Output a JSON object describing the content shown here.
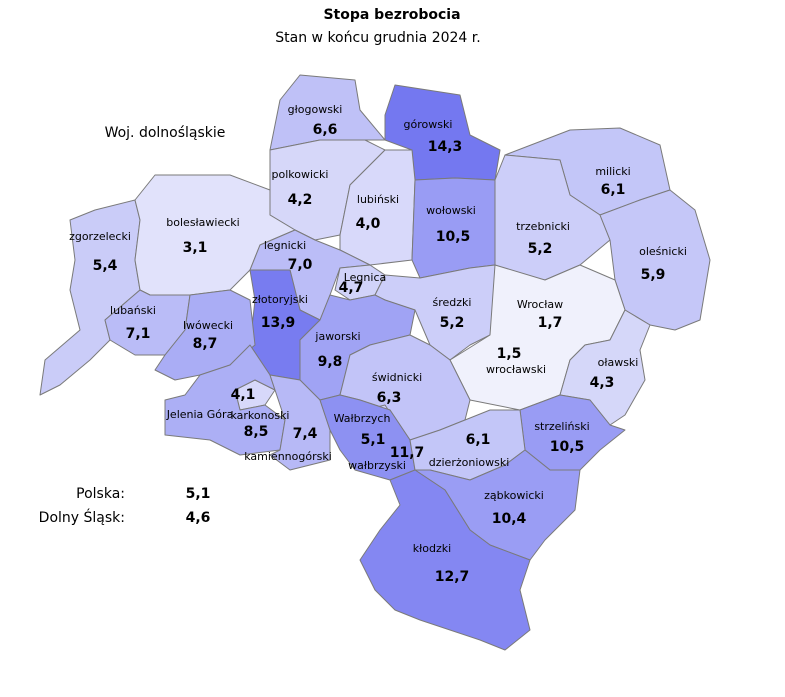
{
  "title": "Stopa bezrobocia",
  "subtitle": "Stan w końcu grudnia 2024 r.",
  "region_label": "Woj. dolnośląskie",
  "color_scale": [
    "#f0f1fc",
    "#7478f0"
  ],
  "regions": [
    {
      "name": "głogowski",
      "value": 6.6,
      "value_label": "6,6"
    },
    {
      "name": "górowski",
      "value": 14.3,
      "value_label": "14,3"
    },
    {
      "name": "polkowicki",
      "value": 4.2,
      "value_label": "4,2"
    },
    {
      "name": "lubiński",
      "value": 4.0,
      "value_label": "4,0"
    },
    {
      "name": "wołowski",
      "value": 10.5,
      "value_label": "10,5"
    },
    {
      "name": "milicki",
      "value": 6.1,
      "value_label": "6,1"
    },
    {
      "name": "trzebnicki",
      "value": 5.2,
      "value_label": "5,2"
    },
    {
      "name": "oleśnicki",
      "value": 5.9,
      "value_label": "5,9"
    },
    {
      "name": "zgorzelecki",
      "value": 5.4,
      "value_label": "5,4"
    },
    {
      "name": "bolesławiecki",
      "value": 3.1,
      "value_label": "3,1"
    },
    {
      "name": "legnicki",
      "value": 7.0,
      "value_label": "7,0"
    },
    {
      "name": "Legnica",
      "value": 4.7,
      "value_label": "4,7"
    },
    {
      "name": "złotoryjski",
      "value": 13.9,
      "value_label": "13,9"
    },
    {
      "name": "średzki",
      "value": 5.2,
      "value_label": "5,2"
    },
    {
      "name": "Wrocław",
      "value": 1.7,
      "value_label": "1,7"
    },
    {
      "name": "lubański",
      "value": 7.1,
      "value_label": "7,1"
    },
    {
      "name": "lwówecki",
      "value": 8.7,
      "value_label": "8,7"
    },
    {
      "name": "jaworski",
      "value": 9.8,
      "value_label": "9,8"
    },
    {
      "name": "wrocławski",
      "value": 1.5,
      "value_label": "1,5"
    },
    {
      "name": "oławski",
      "value": 4.3,
      "value_label": "4,3"
    },
    {
      "name": "świdnicki",
      "value": 6.3,
      "value_label": "6,3"
    },
    {
      "name": "Jelenia Góra",
      "value": 4.1,
      "value_label": "4,1"
    },
    {
      "name": "karkonoski",
      "value": 8.5,
      "value_label": "8,5"
    },
    {
      "name": "Wałbrzych",
      "value": 5.1,
      "value_label": "5,1"
    },
    {
      "name": "kamiennogórski",
      "value": 7.4,
      "value_label": "7,4"
    },
    {
      "name": "wałbrzyski",
      "value": 11.7,
      "value_label": "11,7"
    },
    {
      "name": "strzeliński",
      "value": 10.5,
      "value_label": "10,5"
    },
    {
      "name": "dzierżoniowski",
      "value": 6.1,
      "value_label": "6,1"
    },
    {
      "name": "ząbkowicki",
      "value": 10.4,
      "value_label": "10,4"
    },
    {
      "name": "kłodzki",
      "value": 12.7,
      "value_label": "12,7"
    }
  ],
  "summary": [
    {
      "name": "Polska:",
      "value": "5,1"
    },
    {
      "name": "Dolny Śląsk:",
      "value": "4,6"
    }
  ]
}
